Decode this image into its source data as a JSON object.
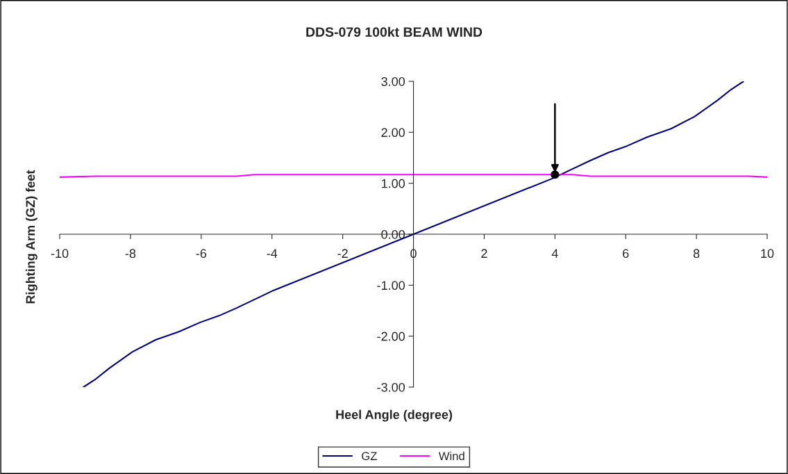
{
  "chart_data": {
    "type": "line",
    "title": "DDS-079 100kt BEAM WIND",
    "xlabel": "Heel Angle (degree)",
    "ylabel": "Righting Arm (GZ) feet",
    "series": [
      {
        "name": "GZ",
        "color": "#000080",
        "x": [
          -9.33,
          -8.98,
          -8.6,
          -7.95,
          -7.28,
          -6.62,
          -6.03,
          -5.5,
          -5.01,
          -4.4,
          -3.95,
          0,
          3.95,
          4.4,
          5.01,
          5.5,
          6.03,
          6.62,
          7.28,
          7.95,
          8.6,
          8.98,
          9.33
        ],
        "values": [
          -3.0,
          -2.84,
          -2.63,
          -2.31,
          -2.07,
          -1.91,
          -1.73,
          -1.6,
          -1.45,
          -1.25,
          -1.1,
          0,
          1.1,
          1.25,
          1.45,
          1.6,
          1.73,
          1.91,
          2.07,
          2.31,
          2.63,
          2.84,
          3.0
        ]
      },
      {
        "name": "Wind",
        "color": "#ff00ff",
        "x": [
          -10,
          -9,
          -5,
          -4.5,
          4.5,
          5,
          9.5,
          10
        ],
        "values": [
          1.12,
          1.14,
          1.14,
          1.17,
          1.17,
          1.14,
          1.14,
          1.12
        ]
      },
      {
        "type": "scatter",
        "color": "#000000",
        "x": [
          4
        ],
        "values": [
          1.17
        ]
      }
    ],
    "xlim": [
      -10,
      10
    ],
    "xticks": [
      -10,
      -8,
      -6,
      -4,
      -2,
      0,
      2,
      4,
      6,
      8,
      10
    ],
    "ylim": [
      -3,
      3
    ],
    "yticks": [
      {
        "value": -3,
        "label": "-3.00"
      },
      {
        "value": -2,
        "label": "-2.00"
      },
      {
        "value": -1,
        "label": "-1.00"
      },
      {
        "value": 0,
        "label": "0.00"
      },
      {
        "value": 1,
        "label": "1.00"
      },
      {
        "value": 2,
        "label": "2.00"
      },
      {
        "value": 3,
        "label": "3.00"
      }
    ],
    "grid": false,
    "legend": "bottom"
  }
}
